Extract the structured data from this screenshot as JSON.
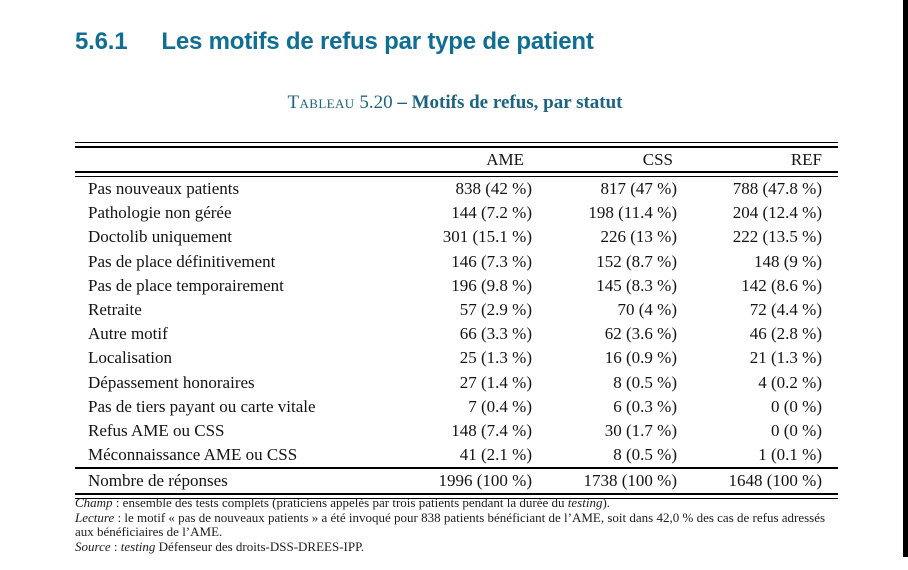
{
  "page": {
    "section": {
      "number": "5.6.1",
      "title": "Les motifs de refus par type de patient"
    },
    "caption": {
      "label": "Tableau",
      "number": "5.20",
      "dash": "–",
      "title": "Motifs de refus, par statut"
    },
    "accent_color": "#116e93",
    "caption_color": "#1d6382"
  },
  "table": {
    "columns": [
      "AME",
      "CSS",
      "REF"
    ],
    "rows": [
      [
        "Pas nouveaux patients",
        "838 (42 %)",
        "817 (47 %)",
        "788 (47.8 %)"
      ],
      [
        "Pathologie non gérée",
        "144 (7.2 %)",
        "198 (11.4 %)",
        "204 (12.4 %)"
      ],
      [
        "Doctolib uniquement",
        "301 (15.1 %)",
        "226 (13 %)",
        "222 (13.5 %)"
      ],
      [
        "Pas de place définitivement",
        "146 (7.3 %)",
        "152 (8.7 %)",
        "148 (9 %)"
      ],
      [
        "Pas de place temporairement",
        "196 (9.8 %)",
        "145 (8.3 %)",
        "142 (8.6 %)"
      ],
      [
        "Retraite",
        "57 (2.9 %)",
        "70 (4 %)",
        "72 (4.4 %)"
      ],
      [
        "Autre motif",
        "66 (3.3 %)",
        "62 (3.6 %)",
        "46 (2.8 %)"
      ],
      [
        "Localisation",
        "25 (1.3 %)",
        "16 (0.9 %)",
        "21 (1.3 %)"
      ],
      [
        "Dépassement honoraires",
        "27 (1.4 %)",
        "8 (0.5 %)",
        "4 (0.2 %)"
      ],
      [
        "Pas de tiers payant ou carte vitale",
        "7 (0.4 %)",
        "6 (0.3 %)",
        "0 (0 %)"
      ],
      [
        "Refus AME ou CSS",
        "148 (7.4 %)",
        "30 (1.7 %)",
        "0 (0 %)"
      ],
      [
        "Méconnaissance AME ou CSS",
        "41 (2.1 %)",
        "8 (0.5 %)",
        "1 (0.1 %)"
      ]
    ],
    "total": [
      "Nombre de réponses",
      "1996 (100 %)",
      "1738 (100 %)",
      "1648 (100 %)"
    ]
  },
  "notes": [
    [
      {
        "t": "Champ",
        "i": 1
      },
      {
        "t": " : ensemble des tests complets (praticiens appelés par trois patients pendant la durée du ",
        "i": 0
      },
      {
        "t": "testing",
        "i": 1
      },
      {
        "t": ").",
        "i": 0
      }
    ],
    [
      {
        "t": "Lecture",
        "i": 1
      },
      {
        "t": " : le motif « pas de nouveaux patients » a été invoqué pour 838 patients bénéficiant de l’AME, soit dans 42,0 % des cas de refus adressés aux bénéficiaires de l’AME.",
        "i": 0
      }
    ],
    [
      {
        "t": "Source",
        "i": 1
      },
      {
        "t": " : ",
        "i": 0
      },
      {
        "t": "testing",
        "i": 1
      },
      {
        "t": " Défenseur des droits-DSS-DREES-IPP.",
        "i": 0
      }
    ]
  ]
}
